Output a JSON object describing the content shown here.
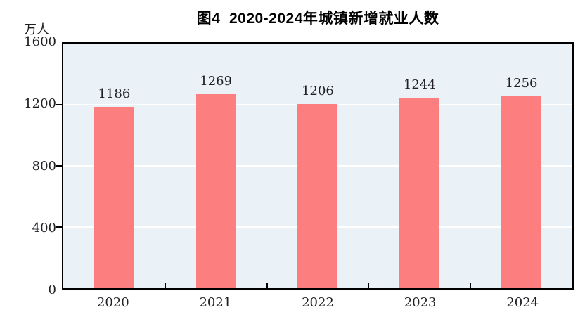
{
  "chart": {
    "title": "图4  2020-2024年城镇新增就业人数",
    "unit_label": "万人"
  },
  "chart_data": {
    "type": "bar",
    "title": "图4  2020-2024年城镇新增就业人数",
    "categories": [
      "2020",
      "2021",
      "2022",
      "2023",
      "2024"
    ],
    "values": [
      1186,
      1269,
      1206,
      1244,
      1256
    ],
    "xlabel": "",
    "ylabel": "万人",
    "ylim": [
      0,
      1600
    ],
    "yticks": [
      0,
      400,
      800,
      1200,
      1600
    ],
    "grid": true,
    "legend": "none",
    "bar_color": "#fc7e7e",
    "plot_background": "#eaf2f7",
    "gridline_color": "#ffffff"
  }
}
